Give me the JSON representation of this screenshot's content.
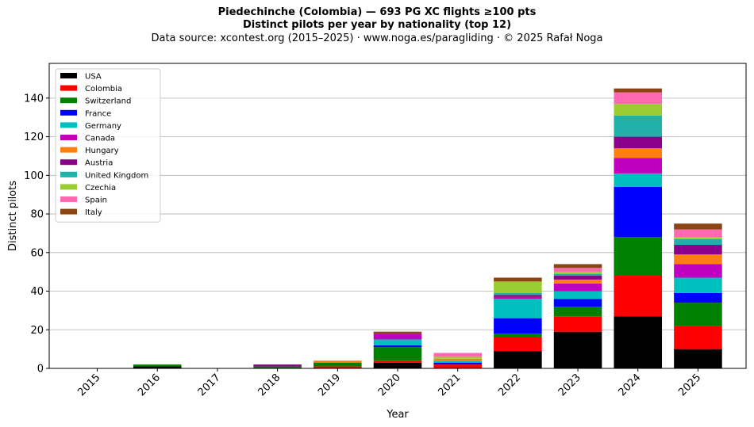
{
  "header": {
    "title": "Piedechinche (Colombia)  —  693 PG XC flights ≥100 pts",
    "subtitle": "Distinct pilots per year by nationality (top 12)",
    "source": "Data source: xcontest.org (2015–2025)  ·  www.noga.es/paragliding  ·  © 2025 Rafał Noga"
  },
  "chart_data": {
    "type": "bar",
    "stacked": true,
    "xlabel": "Year",
    "ylabel": "Distinct pilots",
    "ylim": [
      0,
      158
    ],
    "yticks": [
      0,
      20,
      40,
      60,
      80,
      100,
      120,
      140
    ],
    "grid": "horizontal",
    "legend_position": "top-left",
    "categories": [
      "2015",
      "2016",
      "2017",
      "2018",
      "2019",
      "2020",
      "2021",
      "2022",
      "2023",
      "2024",
      "2025"
    ],
    "series": [
      {
        "name": "USA",
        "color": "#000000",
        "values": [
          0,
          1,
          0,
          0,
          0,
          3,
          0,
          9,
          19,
          27,
          10
        ]
      },
      {
        "name": "Colombia",
        "color": "#ff0000",
        "values": [
          0,
          0,
          0,
          0,
          1,
          1,
          2,
          7,
          8,
          21,
          12
        ]
      },
      {
        "name": "Switzerland",
        "color": "#008000",
        "values": [
          0,
          1,
          0,
          1,
          2,
          7,
          0,
          2,
          5,
          20,
          12
        ]
      },
      {
        "name": "France",
        "color": "#0000ff",
        "values": [
          0,
          0,
          0,
          0,
          0,
          1,
          1,
          8,
          4,
          26,
          5
        ]
      },
      {
        "name": "Germany",
        "color": "#00bfbf",
        "values": [
          0,
          0,
          0,
          0,
          0,
          3,
          1,
          10,
          4,
          7,
          8
        ]
      },
      {
        "name": "Canada",
        "color": "#bf00bf",
        "values": [
          0,
          0,
          0,
          0,
          0,
          3,
          0,
          1,
          4,
          8,
          7
        ]
      },
      {
        "name": "Hungary",
        "color": "#ff7f0e",
        "values": [
          0,
          0,
          0,
          0,
          1,
          0,
          1,
          0,
          2,
          5,
          5
        ]
      },
      {
        "name": "Austria",
        "color": "#8b008b",
        "values": [
          0,
          0,
          0,
          1,
          0,
          0,
          0,
          1,
          2,
          6,
          5
        ]
      },
      {
        "name": "United Kingdom",
        "color": "#20b2aa",
        "values": [
          0,
          0,
          0,
          0,
          0,
          0,
          0,
          1,
          1,
          11,
          3
        ]
      },
      {
        "name": "Czechia",
        "color": "#9acd32",
        "values": [
          0,
          0,
          0,
          0,
          0,
          0,
          1,
          6,
          1,
          6,
          1
        ]
      },
      {
        "name": "Spain",
        "color": "#ff69b4",
        "values": [
          0,
          0,
          0,
          0,
          0,
          0,
          2,
          0,
          2,
          6,
          4
        ]
      },
      {
        "name": "Italy",
        "color": "#8b4513",
        "values": [
          0,
          0,
          0,
          0,
          0,
          1,
          0,
          2,
          2,
          2,
          3
        ]
      }
    ]
  }
}
